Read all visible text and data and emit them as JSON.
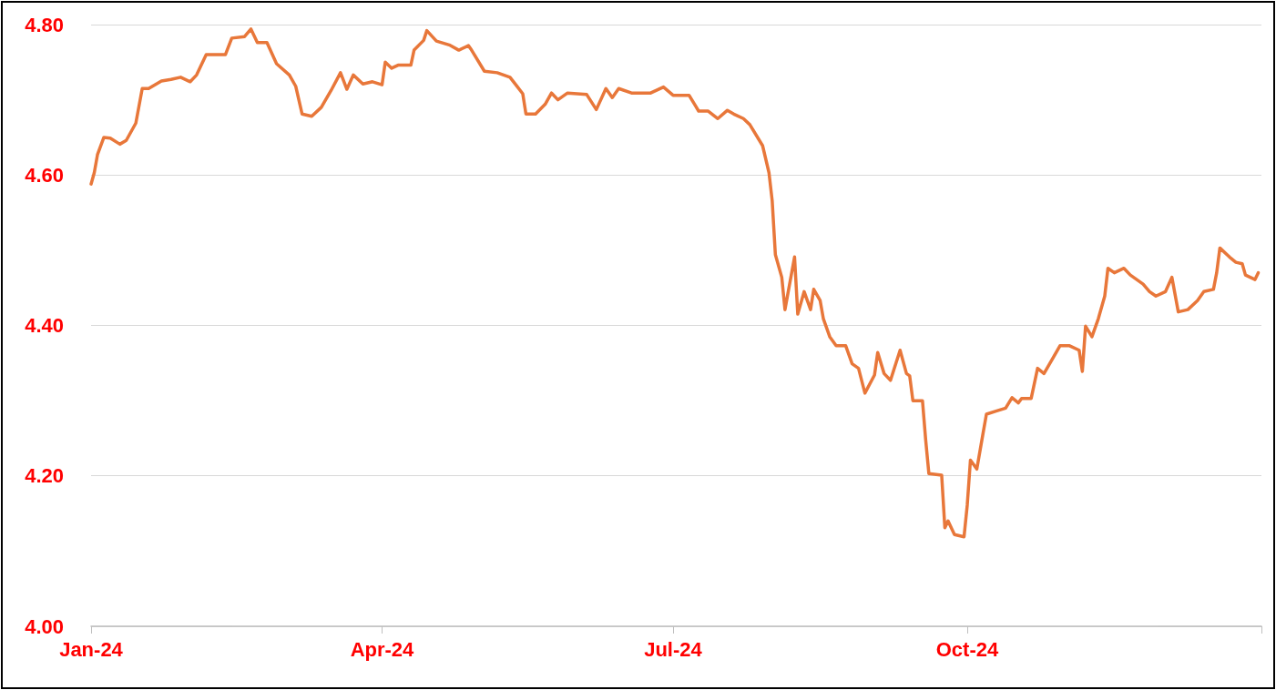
{
  "chart_data": {
    "type": "line",
    "x": [
      "2024-01-01",
      "2024-01-02",
      "2024-01-03",
      "2024-01-05",
      "2024-01-07",
      "2024-01-10",
      "2024-01-12",
      "2024-01-15",
      "2024-01-17",
      "2024-01-19",
      "2024-01-23",
      "2024-01-26",
      "2024-01-29",
      "2024-02-01",
      "2024-02-03",
      "2024-02-06",
      "2024-02-09",
      "2024-02-12",
      "2024-02-14",
      "2024-02-18",
      "2024-02-20",
      "2024-02-22",
      "2024-02-25",
      "2024-02-28",
      "2024-03-03",
      "2024-03-05",
      "2024-03-07",
      "2024-03-10",
      "2024-03-13",
      "2024-03-16",
      "2024-03-19",
      "2024-03-21",
      "2024-03-23",
      "2024-03-26",
      "2024-03-29",
      "2024-04-01",
      "2024-04-02",
      "2024-04-04",
      "2024-04-06",
      "2024-04-10",
      "2024-04-11",
      "2024-04-14",
      "2024-04-15",
      "2024-04-18",
      "2024-04-22",
      "2024-04-25",
      "2024-04-28",
      "2024-04-29",
      "2024-05-03",
      "2024-05-07",
      "2024-05-11",
      "2024-05-13",
      "2024-05-15",
      "2024-05-16",
      "2024-05-19",
      "2024-05-22",
      "2024-05-24",
      "2024-05-26",
      "2024-05-29",
      "2024-06-04",
      "2024-06-07",
      "2024-06-10",
      "2024-06-12",
      "2024-06-14",
      "2024-06-18",
      "2024-06-24",
      "2024-06-28",
      "2024-07-01",
      "2024-07-06",
      "2024-07-09",
      "2024-07-12",
      "2024-07-15",
      "2024-07-18",
      "2024-07-20",
      "2024-07-23",
      "2024-07-25",
      "2024-07-29",
      "2024-07-31",
      "2024-08-01",
      "2024-08-02",
      "2024-08-04",
      "2024-08-05",
      "2024-08-08",
      "2024-08-09",
      "2024-08-11",
      "2024-08-13",
      "2024-08-14",
      "2024-08-16",
      "2024-08-17",
      "2024-08-19",
      "2024-08-21",
      "2024-08-24",
      "2024-08-26",
      "2024-08-28",
      "2024-08-30",
      "2024-09-02",
      "2024-09-03",
      "2024-09-05",
      "2024-09-07",
      "2024-09-10",
      "2024-09-12",
      "2024-09-13",
      "2024-09-14",
      "2024-09-17",
      "2024-09-18",
      "2024-09-19",
      "2024-09-23",
      "2024-09-24",
      "2024-09-25",
      "2024-09-27",
      "2024-09-30",
      "2024-10-01",
      "2024-10-02",
      "2024-10-04",
      "2024-10-06",
      "2024-10-07",
      "2024-10-10",
      "2024-10-13",
      "2024-10-15",
      "2024-10-17",
      "2024-10-18",
      "2024-10-21",
      "2024-10-23",
      "2024-10-25",
      "2024-10-28",
      "2024-10-30",
      "2024-11-02",
      "2024-11-05",
      "2024-11-06",
      "2024-11-07",
      "2024-11-09",
      "2024-11-11",
      "2024-11-13",
      "2024-11-14",
      "2024-11-16",
      "2024-11-19",
      "2024-11-21",
      "2024-11-23",
      "2024-11-25",
      "2024-11-27",
      "2024-11-29",
      "2024-12-02",
      "2024-12-04",
      "2024-12-06",
      "2024-12-09",
      "2024-12-12",
      "2024-12-14",
      "2024-12-17",
      "2024-12-18",
      "2024-12-19",
      "2024-12-22",
      "2024-12-24",
      "2024-12-26",
      "2024-12-27",
      "2024-12-30",
      "2024-12-31"
    ],
    "series": [
      {
        "color": "#e8773a",
        "values": [
          4.588,
          4.603,
          4.627,
          4.65,
          4.649,
          4.641,
          4.646,
          4.669,
          4.715,
          4.715,
          4.725,
          4.727,
          4.73,
          4.724,
          4.733,
          4.76,
          4.76,
          4.76,
          4.782,
          4.784,
          4.794,
          4.776,
          4.776,
          4.748,
          4.733,
          4.718,
          4.681,
          4.678,
          4.69,
          4.712,
          4.736,
          4.714,
          4.733,
          4.721,
          4.724,
          4.72,
          4.75,
          4.742,
          4.746,
          4.746,
          4.766,
          4.779,
          4.792,
          4.778,
          4.773,
          4.766,
          4.772,
          4.766,
          4.738,
          4.736,
          4.73,
          4.719,
          4.708,
          4.681,
          4.681,
          4.694,
          4.709,
          4.7,
          4.709,
          4.707,
          4.687,
          4.715,
          4.703,
          4.715,
          4.709,
          4.709,
          4.717,
          4.706,
          4.706,
          4.685,
          4.685,
          4.675,
          4.686,
          4.681,
          4.675,
          4.667,
          4.639,
          4.603,
          4.566,
          4.494,
          4.464,
          4.421,
          4.491,
          4.415,
          4.445,
          4.421,
          4.448,
          4.433,
          4.409,
          4.385,
          4.373,
          4.373,
          4.349,
          4.343,
          4.31,
          4.334,
          4.364,
          4.336,
          4.327,
          4.367,
          4.336,
          4.333,
          4.3,
          4.3,
          4.248,
          4.203,
          4.201,
          4.131,
          4.14,
          4.122,
          4.119,
          4.161,
          4.221,
          4.209,
          4.258,
          4.282,
          4.286,
          4.29,
          4.304,
          4.297,
          4.303,
          4.303,
          4.343,
          4.336,
          4.358,
          4.373,
          4.373,
          4.367,
          4.339,
          4.399,
          4.385,
          4.409,
          4.439,
          4.476,
          4.47,
          4.476,
          4.467,
          4.461,
          4.455,
          4.445,
          4.439,
          4.445,
          4.464,
          4.418,
          4.421,
          4.433,
          4.445,
          4.448,
          4.47,
          4.503,
          4.491,
          4.484,
          4.482,
          4.467,
          4.461,
          4.47
        ]
      }
    ],
    "xlim": [
      "2024-01-01",
      "2025-01-01"
    ],
    "xticks": [
      {
        "value": "2024-01-01",
        "label": "Jan-24"
      },
      {
        "value": "2024-04-01",
        "label": "Apr-24"
      },
      {
        "value": "2024-07-01",
        "label": "Jul-24"
      },
      {
        "value": "2024-10-01",
        "label": "Oct-24"
      },
      {
        "value": "2025-01-01",
        "label": null
      }
    ],
    "ylim": [
      4.0,
      4.8
    ],
    "yticks": [
      {
        "value": 4.0,
        "label": "4.00"
      },
      {
        "value": 4.2,
        "label": "4.20"
      },
      {
        "value": 4.4,
        "label": "4.40"
      },
      {
        "value": 4.6,
        "label": "4.60"
      },
      {
        "value": 4.8,
        "label": "4.80"
      }
    ],
    "grid": "y",
    "marker": "none",
    "line_style": "solid"
  }
}
